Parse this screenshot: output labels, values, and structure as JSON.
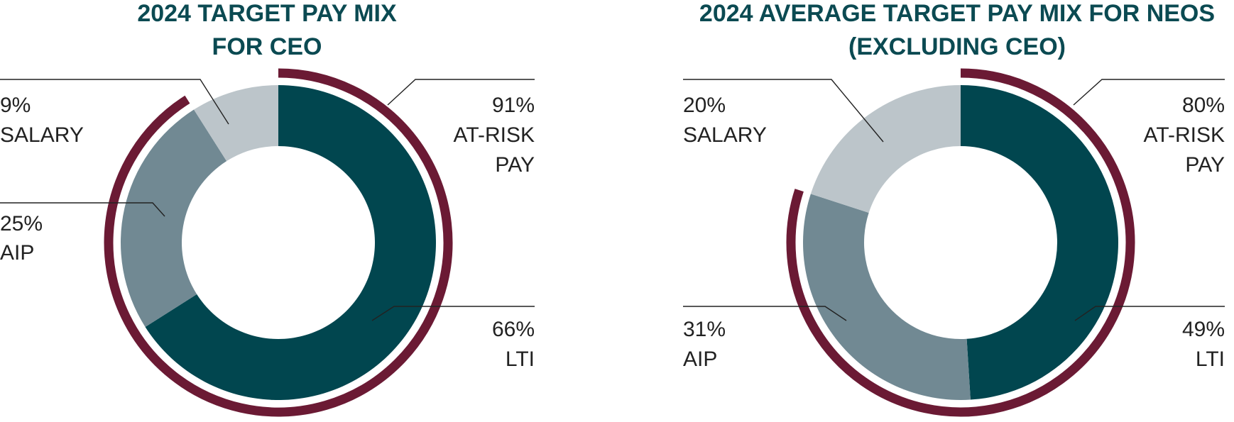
{
  "colors": {
    "lti": "#01464f",
    "aip": "#718993",
    "salary": "#bcc5ca",
    "at_risk_arc": "#6b1a34",
    "title": "#0b4a52",
    "text": "#222222"
  },
  "chart_data": [
    {
      "type": "pie",
      "style": "donut",
      "title": {
        "line1": "2024 TARGET PAY MIX",
        "line2": "FOR CEO"
      },
      "slices": [
        {
          "key": "lti",
          "pct": "66%",
          "name": "LTI",
          "value": 66
        },
        {
          "key": "aip",
          "pct": "25%",
          "name": "AIP",
          "value": 25
        },
        {
          "key": "salary",
          "pct": "9%",
          "name": "SALARY",
          "value": 9
        }
      ],
      "at_risk": {
        "pct": "91%",
        "line1": "AT-RISK",
        "line2": "PAY",
        "value": 91
      }
    },
    {
      "type": "pie",
      "style": "donut",
      "title": {
        "line1": "2024 AVERAGE TARGET PAY MIX FOR NEOS",
        "line2": "(EXCLUDING CEO)"
      },
      "slices": [
        {
          "key": "lti",
          "pct": "49%",
          "name": "LTI",
          "value": 49
        },
        {
          "key": "aip",
          "pct": "31%",
          "name": "AIP",
          "value": 31
        },
        {
          "key": "salary",
          "pct": "20%",
          "name": "SALARY",
          "value": 20
        }
      ],
      "at_risk": {
        "pct": "80%",
        "line1": "AT-RISK",
        "line2": "PAY",
        "value": 80
      }
    }
  ]
}
